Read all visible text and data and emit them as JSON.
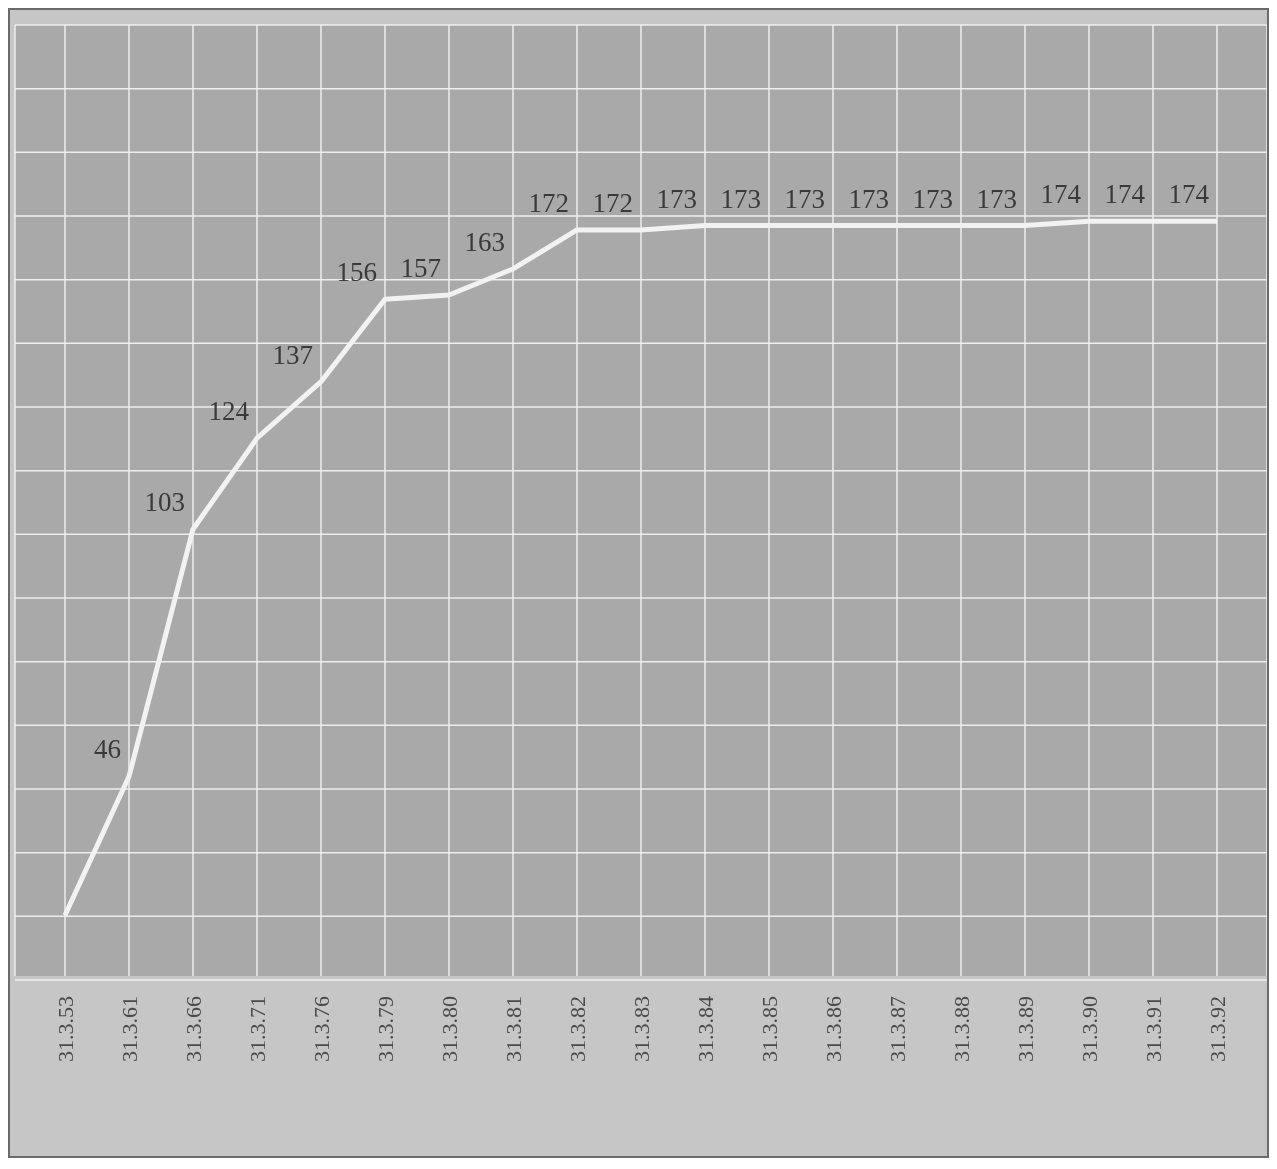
{
  "chart_data": {
    "type": "line",
    "categories": [
      "31.3.53",
      "31.3.61",
      "31.3.66",
      "31.3.71",
      "31.3.76",
      "31.3.79",
      "31.3.80",
      "31.3.81",
      "31.3.82",
      "31.3.83",
      "31.3.84",
      "31.3.85",
      "31.3.86",
      "31.3.87",
      "31.3.88",
      "31.3.89",
      "31.3.90",
      "31.3.91",
      "31.3.92"
    ],
    "values": [
      14,
      46,
      103,
      124,
      137,
      156,
      157,
      163,
      172,
      172,
      173,
      173,
      173,
      173,
      173,
      173,
      174,
      174,
      174
    ],
    "value_labels": [
      null,
      "46",
      "103",
      "124",
      "137",
      "156",
      "157",
      "163",
      "172",
      "172",
      "173",
      "173",
      "173",
      "173",
      "173",
      "173",
      "174",
      "174",
      "174"
    ],
    "color": "#f2f2f2",
    "grid": true,
    "marker": "none",
    "line_style": "solid",
    "tick_labels": "x",
    "legend": false
  }
}
